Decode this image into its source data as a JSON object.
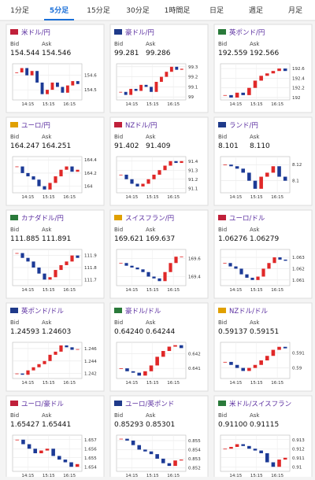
{
  "tabs": [
    "1分足",
    "5分足",
    "15分足",
    "30分足",
    "1時間足",
    "日足",
    "週足",
    "月足"
  ],
  "active_tab": 1,
  "labels": {
    "bid": "Bid",
    "ask": "Ask"
  },
  "up_color": "#e02828",
  "down_color": "#1c3a96",
  "cards": [
    {
      "title": "米ドル/円",
      "bid": "154.544",
      "ask": "154.546",
      "ylim": [
        154.43,
        154.68
      ],
      "yticks": [
        154.6,
        154.5
      ],
      "xlabels": [
        "14:15",
        "15:15",
        "16:15"
      ],
      "closes": [
        154.62,
        154.65,
        154.6,
        154.63,
        154.55,
        154.47,
        154.5,
        154.55,
        154.52,
        154.48,
        154.53,
        154.56,
        154.54
      ]
    },
    {
      "title": "豪ドル/円",
      "bid": "99.281",
      "ask": "99.286",
      "ylim": [
        98.97,
        99.33
      ],
      "yticks": [
        99.3,
        99.2,
        99.1,
        99
      ],
      "xlabels": [
        "14:15",
        "15:15",
        "16:15"
      ],
      "closes": [
        99.05,
        99.02,
        99.08,
        99.06,
        99.12,
        99.1,
        99.05,
        99.15,
        99.2,
        99.25,
        99.3,
        99.27,
        99.28
      ]
    },
    {
      "title": "英ポンド/円",
      "bid": "192.559",
      "ask": "192.566",
      "ylim": [
        191.95,
        192.7
      ],
      "yticks": [
        192.6,
        192.4,
        192.2,
        192
      ],
      "xlabels": [
        "14:15",
        "15:15",
        "16:15"
      ],
      "closes": [
        192.05,
        192.0,
        192.1,
        192.05,
        192.2,
        192.35,
        192.45,
        192.5,
        192.55,
        192.6,
        192.55
      ]
    },
    {
      "title": "ユーロ/円",
      "bid": "164.247",
      "ask": "164.251",
      "ylim": [
        163.9,
        164.45
      ],
      "yticks": [
        164.4,
        164.2,
        164
      ],
      "xlabels": [
        "14:15",
        "15:15",
        "16:15"
      ],
      "closes": [
        164.3,
        164.2,
        164.15,
        164.1,
        164.0,
        163.95,
        164.05,
        164.15,
        164.25,
        164.3,
        164.22,
        164.25
      ]
    },
    {
      "title": "NZドル/円",
      "bid": "91.402",
      "ask": "91.409",
      "ylim": [
        91.05,
        91.45
      ],
      "yticks": [
        91.4,
        91.3,
        91.2,
        91.1
      ],
      "xlabels": [
        "14:15",
        "15:15",
        "16:15"
      ],
      "closes": [
        91.25,
        91.2,
        91.15,
        91.12,
        91.15,
        91.2,
        91.25,
        91.3,
        91.35,
        91.4,
        91.38,
        91.4
      ]
    },
    {
      "title": "ランド/円",
      "bid": "8.101",
      "ask": "8.110",
      "ylim": [
        8.085,
        8.13
      ],
      "yticks": [
        8.12,
        8.1
      ],
      "xlabels": [
        "14:15",
        "15:15",
        "16:15"
      ],
      "closes": [
        8.12,
        8.118,
        8.115,
        8.11,
        8.1,
        8.09,
        8.105,
        8.11,
        8.118,
        8.105,
        8.1
      ]
    },
    {
      "title": "カナダドル/円",
      "bid": "111.885",
      "ask": "111.891",
      "ylim": [
        111.65,
        111.95
      ],
      "yticks": [
        111.9,
        111.8,
        111.7
      ],
      "xlabels": [
        "14:15",
        "15:15",
        "16:15"
      ],
      "closes": [
        111.92,
        111.88,
        111.85,
        111.8,
        111.75,
        111.7,
        111.72,
        111.78,
        111.82,
        111.85,
        111.9,
        111.88
      ]
    },
    {
      "title": "スイスフラン/円",
      "bid": "169.621",
      "ask": "169.637",
      "ylim": [
        169.3,
        169.7
      ],
      "yticks": [
        169.6,
        169.4
      ],
      "xlabels": [
        "14:15",
        "15:15",
        "16:15"
      ],
      "closes": [
        169.55,
        169.52,
        169.5,
        169.48,
        169.45,
        169.4,
        169.38,
        169.35,
        169.45,
        169.55,
        169.62,
        169.62
      ]
    },
    {
      "title": "ユーロ/ドル",
      "bid": "1.06276",
      "ask": "1.06279",
      "ylim": [
        1.0605,
        1.0637
      ],
      "yticks": [
        1.063,
        1.062,
        1.061
      ],
      "xlabels": [
        "14:15",
        "15:15",
        "16:15"
      ],
      "closes": [
        1.0625,
        1.0622,
        1.062,
        1.0615,
        1.0612,
        1.061,
        1.0613,
        1.062,
        1.0625,
        1.063,
        1.0628,
        1.0627
      ]
    },
    {
      "title": "英ポンド/ドル",
      "bid": "1.24593",
      "ask": "1.24603",
      "ylim": [
        1.2412,
        1.247
      ],
      "yticks": [
        1.246,
        1.244,
        1.242
      ],
      "xlabels": [
        "14:15",
        "15:15",
        "16:15"
      ],
      "closes": [
        1.242,
        1.2418,
        1.2425,
        1.243,
        1.2435,
        1.244,
        1.245,
        1.2455,
        1.2465,
        1.2462,
        1.2458,
        1.2459
      ]
    },
    {
      "title": "豪ドル/ドル",
      "bid": "0.64240",
      "ask": "0.64244",
      "ylim": [
        0.6403,
        0.6428
      ],
      "yticks": [
        0.642,
        0.641
      ],
      "xlabels": [
        "14:15",
        "15:15",
        "16:15"
      ],
      "closes": [
        0.641,
        0.6408,
        0.6407,
        0.6405,
        0.6408,
        0.6412,
        0.6418,
        0.6422,
        0.6425,
        0.6426,
        0.6424
      ]
    },
    {
      "title": "NZドル/ドル",
      "bid": "0.59137",
      "ask": "0.59151",
      "ylim": [
        0.5893,
        0.5917
      ],
      "yticks": [
        0.591,
        0.59
      ],
      "xlabels": [
        "14:15",
        "15:15",
        "16:15"
      ],
      "closes": [
        0.5904,
        0.5902,
        0.59,
        0.5898,
        0.59,
        0.5902,
        0.5905,
        0.5908,
        0.5912,
        0.5914,
        0.5913
      ]
    },
    {
      "title": "ユーロ/豪ドル",
      "bid": "1.65427",
      "ask": "1.65441",
      "ylim": [
        1.6535,
        1.6575
      ],
      "yticks": [
        1.657,
        1.656,
        1.655,
        1.654
      ],
      "xlabels": [
        "14:15",
        "15:15",
        "16:15"
      ],
      "closes": [
        1.657,
        1.6565,
        1.656,
        1.6555,
        1.6558,
        1.656,
        1.6552,
        1.6548,
        1.6545,
        1.654,
        1.6543
      ]
    },
    {
      "title": "ユーロ/英ポンド",
      "bid": "0.85293",
      "ask": "0.85301",
      "ylim": [
        0.8516,
        0.8556
      ],
      "yticks": [
        0.855,
        0.854,
        0.853,
        0.852
      ],
      "xlabels": [
        "14:15",
        "15:15",
        "16:15"
      ],
      "closes": [
        0.8552,
        0.855,
        0.8545,
        0.854,
        0.8538,
        0.8535,
        0.853,
        0.8525,
        0.8522,
        0.8528,
        0.8529
      ]
    },
    {
      "title": "米ドル/スイスフラン",
      "bid": "0.91100",
      "ask": "0.91115",
      "ylim": [
        0.9095,
        0.9135
      ],
      "yticks": [
        0.913,
        0.912,
        0.911,
        0.91
      ],
      "xlabels": [
        "14:15",
        "15:15",
        "16:15"
      ],
      "closes": [
        0.912,
        0.9122,
        0.9125,
        0.9123,
        0.912,
        0.9118,
        0.9115,
        0.9105,
        0.91,
        0.9108,
        0.911
      ]
    }
  ]
}
